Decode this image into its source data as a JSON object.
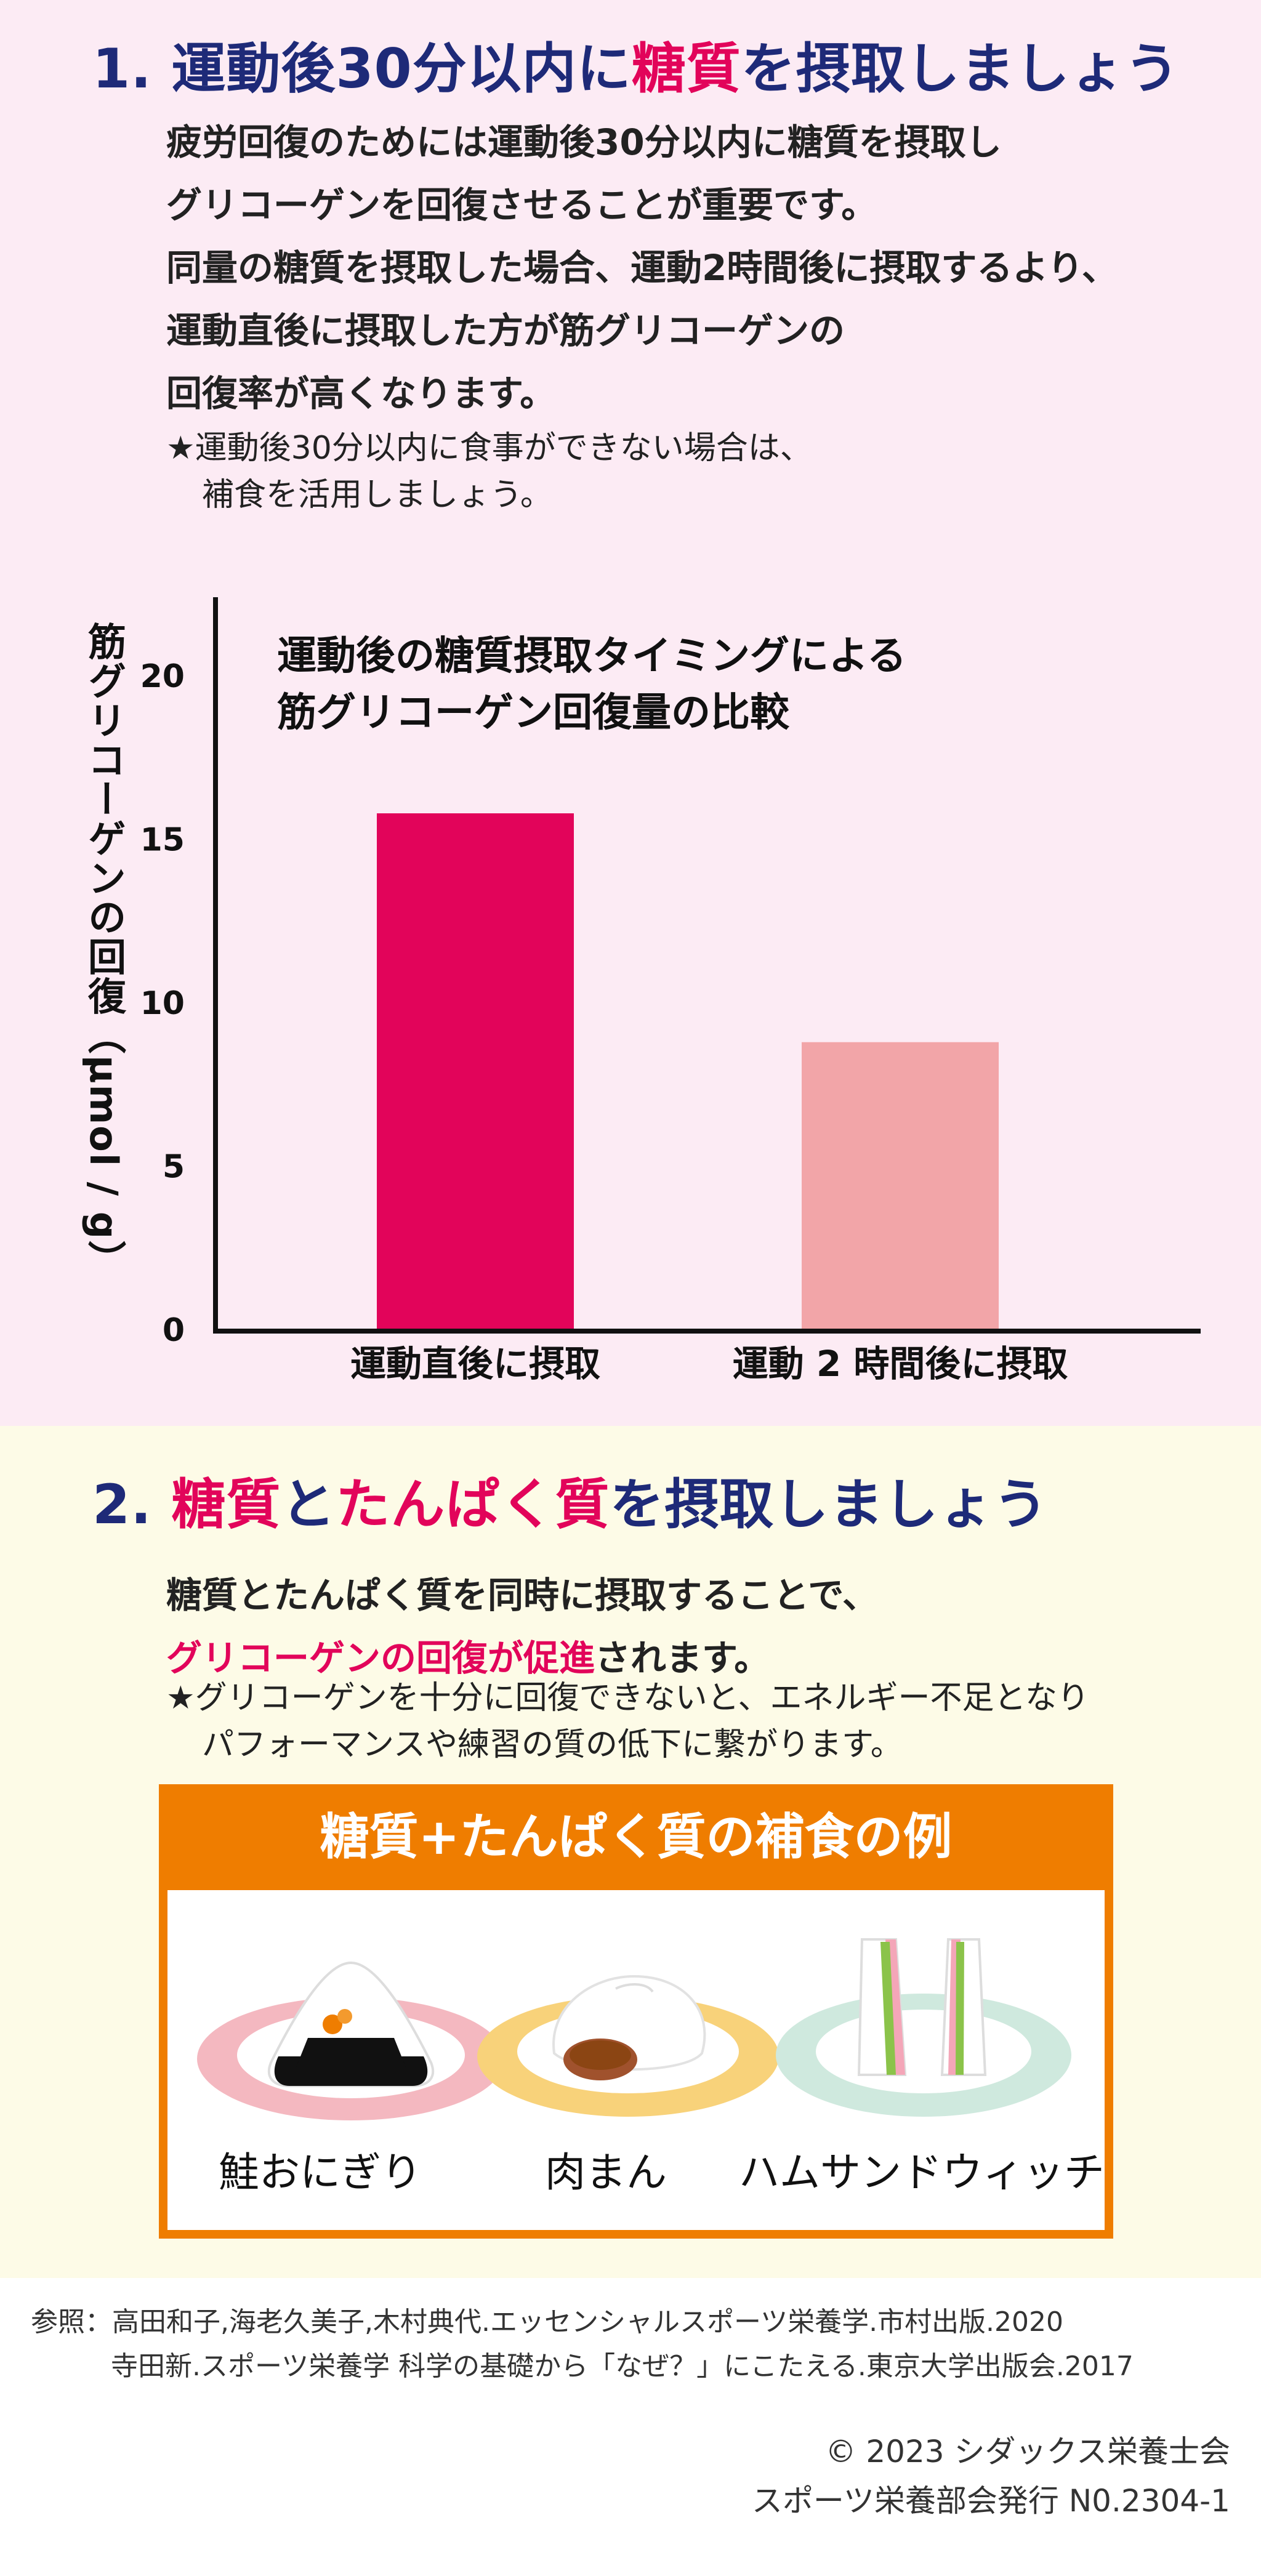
{
  "section1": {
    "number": "1.",
    "title_part1": "運動後30分以内に",
    "title_highlight": "糖質",
    "title_part2": "を摂取しましょう",
    "paragraph": [
      "疲労回復のためには運動後30分以内に糖質を摂取し",
      "グリコーゲンを回復させることが重要です。",
      "同量の糖質を摂取した場合、運動2時間後に摂取するより、",
      "運動直後に摂取した方が筋グリコーゲンの",
      "回復率が高くなります。"
    ],
    "note_line1": "★運動後30分以内に食事ができない場合は、",
    "note_line2": "補食を活用しましょう。"
  },
  "chart_data": {
    "type": "bar",
    "title_line1": "運動後の糖質摂取タイミングによる",
    "title_line2": "筋グリコーゲン回復量の比較",
    "ylabel": "筋グリコーゲンの回復（μmol / g）",
    "categories": [
      "運動直後に摂取",
      "運動 2 時間後に摂取"
    ],
    "values": [
      15.8,
      8.8
    ],
    "colors": [
      "#e2045a",
      "#f2a5a8"
    ],
    "ylim": [
      0,
      20
    ],
    "yticks": [
      0,
      5,
      10,
      15,
      20
    ],
    "grid": false
  },
  "section2": {
    "number": "2.",
    "title_w1": "糖質",
    "title_w2": "と",
    "title_w3": "たんぱく質",
    "title_w4": "を摂取しましょう",
    "para_line1": "糖質とたんぱく質を同時に摂取することで、",
    "para_line2_highlight": "グリコーゲンの回復が促進",
    "para_line2_rest": "されます。",
    "note_line1": "★グリコーゲンを十分に回復できないと、エネルギー不足となり",
    "note_line2": "パフォーマンスや練習の質の低下に繋がります。",
    "box_title": "糖質+たんぱく質の補食の例",
    "foods": [
      "鮭おにぎり",
      "肉まん",
      "ハムサンドウィッチ"
    ]
  },
  "references": {
    "line1": "参照：高田和子,海老久美子,木村典代.エッセンシャルスポーツ栄養学.市村出版.2020",
    "line2": "寺田新.スポーツ栄養学 科学の基礎から「なぜ？」にこたえる.東京大学出版会.2017"
  },
  "copyright": {
    "line1": "© 2023 シダックス栄養士会",
    "line2": "スポーツ栄養部会発行 N0.2304-1"
  },
  "colors": {
    "accent_pink": "#e2045a",
    "navy": "#1e2a78",
    "light_pink": "#f2a5a8",
    "orange": "#ef7d00",
    "section1_bg": "#fcebf4",
    "section2_bg": "#fdfbe7"
  }
}
